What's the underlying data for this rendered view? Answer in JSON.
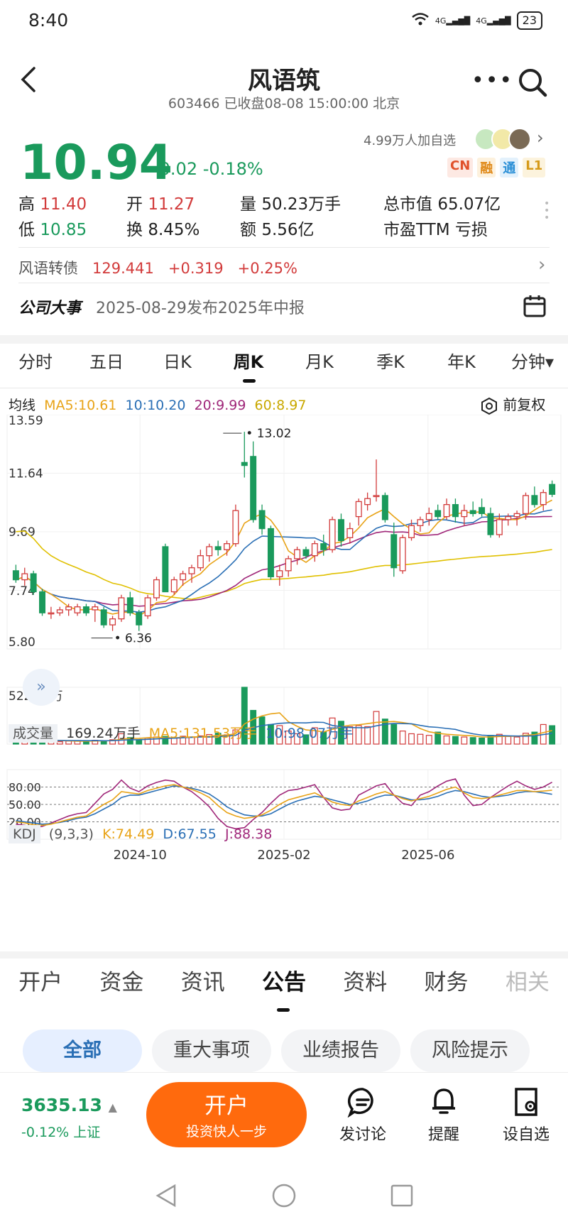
{
  "status": {
    "time": "8:40",
    "net1": "4G",
    "net2": "4G",
    "battery": "23"
  },
  "header": {
    "title": "风语筑",
    "subtitle": "603466 已收盘08-08 15:00:00 北京"
  },
  "quote": {
    "price": "10.94",
    "change": "-0.02",
    "change_pct": "-0.18%",
    "watch": "4.99万人加自选",
    "badges": [
      "CN",
      "融",
      "通",
      "L1"
    ]
  },
  "stats": {
    "high_label": "高",
    "high": "11.40",
    "open_label": "开",
    "open": "11.27",
    "vol_label": "量",
    "vol": "50.23万手",
    "mcap_label": "总市值",
    "mcap": "65.07亿",
    "low_label": "低",
    "low": "10.85",
    "turn_label": "换",
    "turn": "8.45%",
    "amt_label": "额",
    "amt": "5.56亿",
    "pe_label": "市盈TTM",
    "pe": "亏损"
  },
  "bond": {
    "name": "风语转债",
    "price": "129.441",
    "chg": "+0.319",
    "pct": "+0.25%"
  },
  "event": {
    "label": "公司大事",
    "text": "2025-08-29发布2025年中报"
  },
  "ktabs": [
    "分时",
    "五日",
    "日K",
    "周K",
    "月K",
    "季K",
    "年K",
    "分钟▾"
  ],
  "ma": {
    "label": "均线",
    "ma5": "MA5:10.61",
    "ma10": "10:10.20",
    "ma20": "20:9.99",
    "ma60": "60:8.97",
    "fq": "前复权"
  },
  "volume": {
    "label": "成交量",
    "val": "169.24万手",
    "ma5": "MA5:131.53万手",
    "ma10": "10:98.07万手",
    "max": "522.57万"
  },
  "kdj": {
    "label": "KDJ",
    "params": "(9,3,3)",
    "k": "K:74.49",
    "d": "D:67.55",
    "j": "J:88.38",
    "levels": [
      "80.00",
      "50.00",
      "20.00"
    ]
  },
  "colors": {
    "up": "#d23b3b",
    "down": "#1a9a5c",
    "ma5": "#e8a317",
    "ma10": "#2a6fb5",
    "ma20": "#a0287a",
    "ma60": "#e0c000"
  },
  "chart_data": {
    "type": "candlestick",
    "y_ticks": [
      "13.59",
      "11.64",
      "9.69",
      "7.74",
      "5.80"
    ],
    "ylim": [
      5.8,
      13.59
    ],
    "max_label": "13.02",
    "min_label": "6.36",
    "x_ticks": [
      "2024-10",
      "2025-02",
      "2025-06"
    ],
    "candles": [
      [
        8.4,
        8.6,
        8.0,
        8.1
      ],
      [
        8.1,
        8.5,
        7.9,
        8.3
      ],
      [
        8.3,
        8.4,
        7.6,
        7.7
      ],
      [
        7.7,
        7.8,
        6.9,
        7.0
      ],
      [
        7.0,
        7.2,
        6.8,
        7.0
      ],
      [
        7.0,
        7.2,
        6.9,
        7.1
      ],
      [
        7.1,
        7.3,
        6.9,
        7.2
      ],
      [
        7.0,
        7.3,
        6.9,
        7.2
      ],
      [
        7.2,
        7.3,
        6.9,
        7.0
      ],
      [
        7.1,
        7.3,
        6.7,
        7.2
      ],
      [
        7.1,
        7.2,
        6.5,
        6.6
      ],
      [
        6.6,
        6.9,
        6.4,
        6.8
      ],
      [
        6.8,
        7.6,
        6.7,
        7.5
      ],
      [
        7.5,
        7.7,
        6.9,
        7.0
      ],
      [
        7.0,
        7.1,
        6.4,
        6.6
      ],
      [
        6.9,
        7.6,
        6.8,
        7.5
      ],
      [
        7.5,
        8.2,
        7.4,
        8.1
      ],
      [
        9.2,
        9.3,
        7.7,
        7.7
      ],
      [
        7.7,
        8.2,
        7.6,
        8.1
      ],
      [
        8.1,
        8.4,
        7.9,
        8.3
      ],
      [
        8.3,
        8.6,
        8.0,
        8.5
      ],
      [
        8.5,
        9.1,
        8.4,
        8.9
      ],
      [
        8.9,
        9.3,
        8.7,
        9.2
      ],
      [
        9.2,
        9.4,
        8.9,
        9.1
      ],
      [
        9.1,
        9.4,
        8.9,
        9.3
      ],
      [
        9.3,
        10.6,
        9.2,
        10.4
      ],
      [
        12.0,
        13.02,
        11.5,
        11.9
      ],
      [
        12.2,
        12.7,
        10.0,
        10.1
      ],
      [
        10.4,
        10.6,
        9.6,
        9.8
      ],
      [
        9.8,
        9.9,
        8.1,
        8.2
      ],
      [
        8.2,
        8.6,
        7.9,
        8.4
      ],
      [
        8.4,
        8.9,
        8.2,
        8.8
      ],
      [
        8.8,
        9.2,
        8.6,
        9.1
      ],
      [
        9.1,
        9.2,
        8.8,
        8.9
      ],
      [
        8.9,
        9.4,
        8.7,
        9.3
      ],
      [
        9.3,
        9.6,
        8.9,
        9.1
      ],
      [
        9.1,
        10.2,
        9.0,
        10.1
      ],
      [
        10.1,
        10.3,
        9.2,
        9.4
      ],
      [
        9.5,
        10.0,
        9.3,
        9.8
      ],
      [
        10.2,
        10.8,
        9.9,
        10.7
      ],
      [
        10.6,
        11.0,
        10.4,
        10.8
      ],
      [
        10.9,
        12.1,
        10.7,
        10.9
      ],
      [
        10.9,
        11.0,
        10.0,
        10.1
      ],
      [
        9.6,
        10.0,
        8.2,
        8.5
      ],
      [
        8.4,
        9.6,
        8.3,
        9.5
      ],
      [
        9.5,
        10.1,
        9.4,
        9.9
      ],
      [
        9.9,
        10.2,
        9.7,
        10.1
      ],
      [
        10.1,
        10.5,
        9.9,
        10.3
      ],
      [
        10.4,
        10.6,
        10.1,
        10.2
      ],
      [
        10.2,
        10.8,
        10.1,
        10.6
      ],
      [
        10.6,
        10.8,
        10.0,
        10.2
      ],
      [
        10.2,
        10.6,
        9.9,
        10.4
      ],
      [
        10.4,
        10.7,
        10.2,
        10.3
      ],
      [
        10.5,
        10.8,
        10.2,
        10.3
      ],
      [
        10.3,
        10.5,
        9.5,
        9.6
      ],
      [
        9.6,
        10.3,
        9.5,
        10.1
      ],
      [
        10.1,
        10.3,
        9.9,
        10.2
      ],
      [
        10.2,
        10.4,
        9.9,
        10.3
      ],
      [
        10.3,
        11.0,
        10.1,
        10.9
      ],
      [
        10.9,
        11.2,
        10.5,
        10.6
      ],
      [
        10.6,
        11.1,
        10.4,
        11.0
      ],
      [
        11.27,
        11.4,
        10.85,
        10.94
      ]
    ],
    "volume": [
      40,
      38,
      45,
      30,
      25,
      22,
      28,
      30,
      26,
      35,
      30,
      40,
      95,
      60,
      40,
      55,
      65,
      70,
      55,
      72,
      65,
      75,
      88,
      100,
      85,
      130,
      522.57,
      310,
      250,
      180,
      170,
      120,
      95,
      85,
      150,
      110,
      240,
      210,
      160,
      170,
      160,
      300,
      230,
      180,
      120,
      95,
      90,
      80,
      110,
      75,
      70,
      65,
      60,
      55,
      80,
      90,
      70,
      65,
      100,
      110,
      180,
      169.24
    ],
    "kdj_k": [
      20,
      18,
      15,
      14,
      16,
      20,
      24,
      28,
      30,
      40,
      50,
      58,
      72,
      70,
      68,
      74,
      78,
      82,
      84,
      80,
      76,
      70,
      62,
      48,
      36,
      30,
      26,
      28,
      32,
      40,
      50,
      58,
      62,
      66,
      70,
      62,
      54,
      50,
      48,
      56,
      62,
      68,
      72,
      66,
      60,
      56,
      60,
      64,
      70,
      76,
      80,
      70,
      62,
      60,
      62,
      66,
      70,
      74,
      74,
      72,
      73,
      74.49
    ],
    "kdj_d": [
      22,
      20,
      18,
      16,
      17,
      19,
      22,
      26,
      28,
      34,
      42,
      50,
      62,
      66,
      66,
      70,
      74,
      78,
      82,
      80,
      78,
      74,
      68,
      58,
      46,
      38,
      32,
      30,
      30,
      34,
      42,
      50,
      56,
      60,
      64,
      62,
      58,
      54,
      50,
      52,
      56,
      62,
      66,
      66,
      62,
      58,
      58,
      60,
      64,
      70,
      74,
      72,
      68,
      64,
      62,
      64,
      66,
      70,
      72,
      72,
      70,
      67.55
    ],
    "kdj_j": [
      16,
      14,
      10,
      12,
      18,
      24,
      30,
      34,
      36,
      52,
      68,
      76,
      92,
      78,
      72,
      82,
      88,
      92,
      90,
      80,
      72,
      60,
      46,
      26,
      12,
      8,
      10,
      24,
      36,
      52,
      66,
      74,
      76,
      80,
      84,
      62,
      44,
      40,
      42,
      66,
      74,
      82,
      86,
      66,
      52,
      48,
      66,
      72,
      82,
      90,
      94,
      66,
      48,
      50,
      62,
      72,
      82,
      90,
      82,
      76,
      80,
      88.38
    ]
  },
  "btabs": [
    "开户",
    "资金",
    "资讯",
    "公告",
    "资料",
    "财务",
    "相关"
  ],
  "filters": [
    "全部",
    "重大事项",
    "业绩报告",
    "风险提示"
  ],
  "bottom": {
    "index_val": "3635.13",
    "index_chg": "-0.12% 上证",
    "open_main": "开户",
    "open_sub": "投资快人一步",
    "discuss": "发讨论",
    "remind": "提醒",
    "watch": "设自选"
  }
}
